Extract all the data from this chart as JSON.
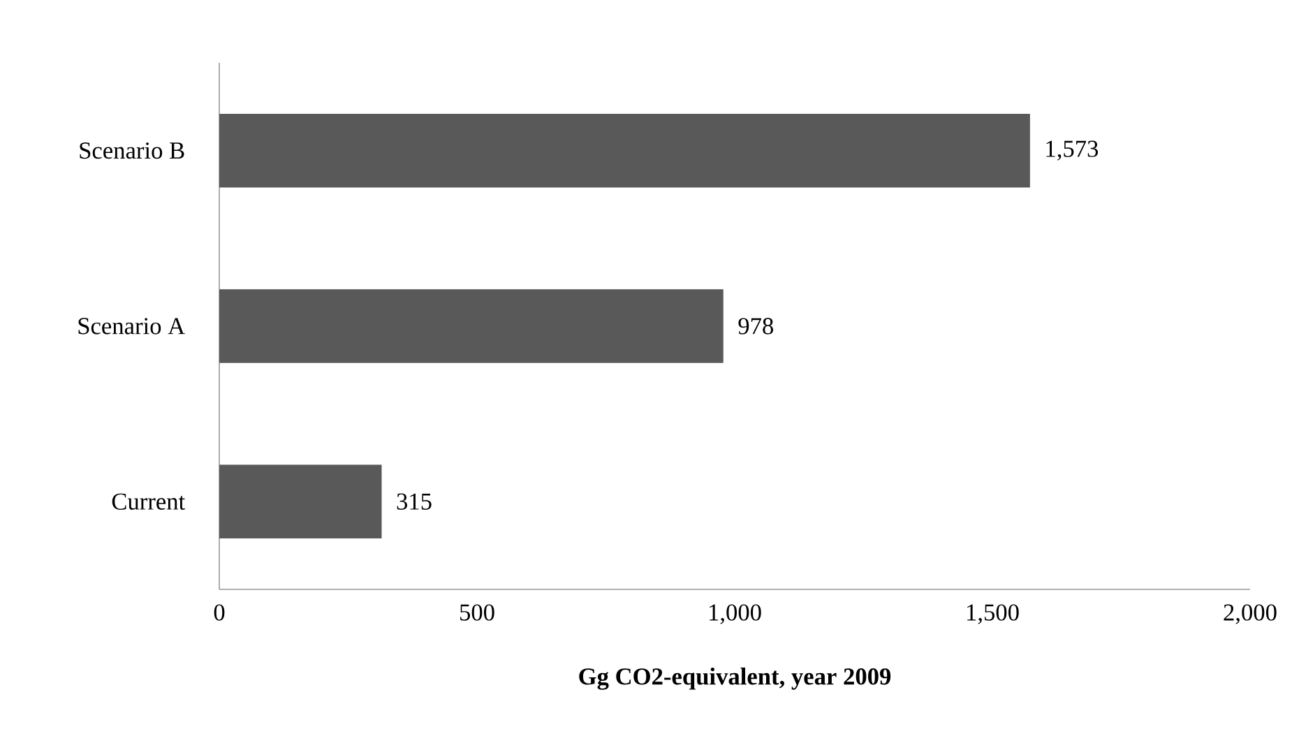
{
  "chart_data": {
    "type": "bar",
    "orientation": "horizontal",
    "categories": [
      "Scenario B",
      "Scenario A",
      "Current"
    ],
    "values": [
      1573,
      978,
      315
    ],
    "color": "#595959",
    "value_labels": [
      "1,573",
      "978",
      "315"
    ],
    "xlabel": "Gg CO2-equivalent, year 2009",
    "xlim": [
      0,
      2000
    ],
    "xticks": [
      0,
      500,
      {
        "value": 1000,
        "label": "1,000"
      },
      {
        "value": 1500,
        "label": "1,500"
      },
      {
        "value": 2000,
        "label": "2,000"
      }
    ],
    "grid": false
  }
}
